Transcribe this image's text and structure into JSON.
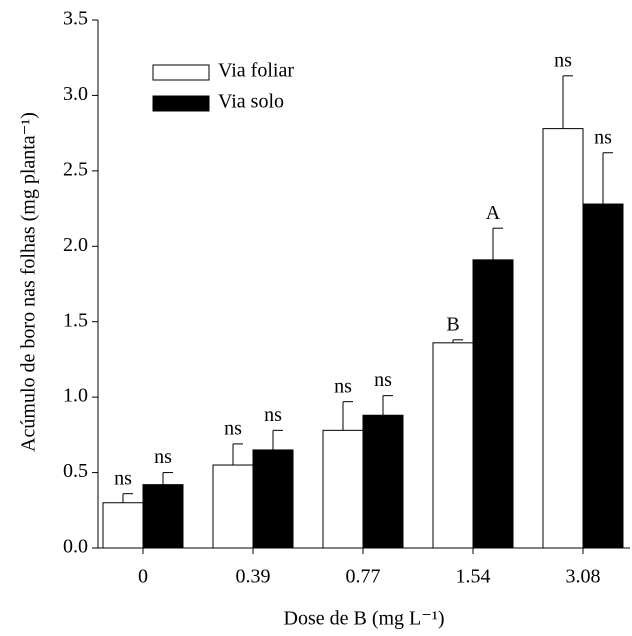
{
  "chart_data": {
    "type": "bar",
    "ylabel": "Acúmulo de boro nas folhas (mg planta⁻¹)",
    "xlabel": "Dose de B (mg L⁻¹)",
    "categories": [
      "0",
      "0.39",
      "0.77",
      "1.54",
      "3.08"
    ],
    "series": [
      {
        "name": "Via foliar",
        "color": "#ffffff",
        "values": [
          0.3,
          0.55,
          0.78,
          1.36,
          2.78
        ],
        "errors": [
          0.06,
          0.14,
          0.19,
          0.02,
          0.35
        ],
        "annotations": [
          "ns",
          "ns",
          "ns",
          "B",
          "ns"
        ]
      },
      {
        "name": "Via solo",
        "color": "#000000",
        "values": [
          0.42,
          0.65,
          0.88,
          1.91,
          2.28
        ],
        "errors": [
          0.08,
          0.13,
          0.13,
          0.21,
          0.34
        ],
        "annotations": [
          "ns",
          "ns",
          "ns",
          "A",
          "ns"
        ]
      }
    ],
    "ylim": [
      0,
      3.5
    ],
    "yticks": [
      {
        "value": 0,
        "label": "0.0"
      },
      0.5,
      {
        "value": 1,
        "label": "1.0"
      },
      1.5,
      {
        "value": 2,
        "label": "2.0"
      },
      2.5,
      {
        "value": 3,
        "label": "3.0"
      },
      3.5
    ],
    "legend": "upper left"
  }
}
